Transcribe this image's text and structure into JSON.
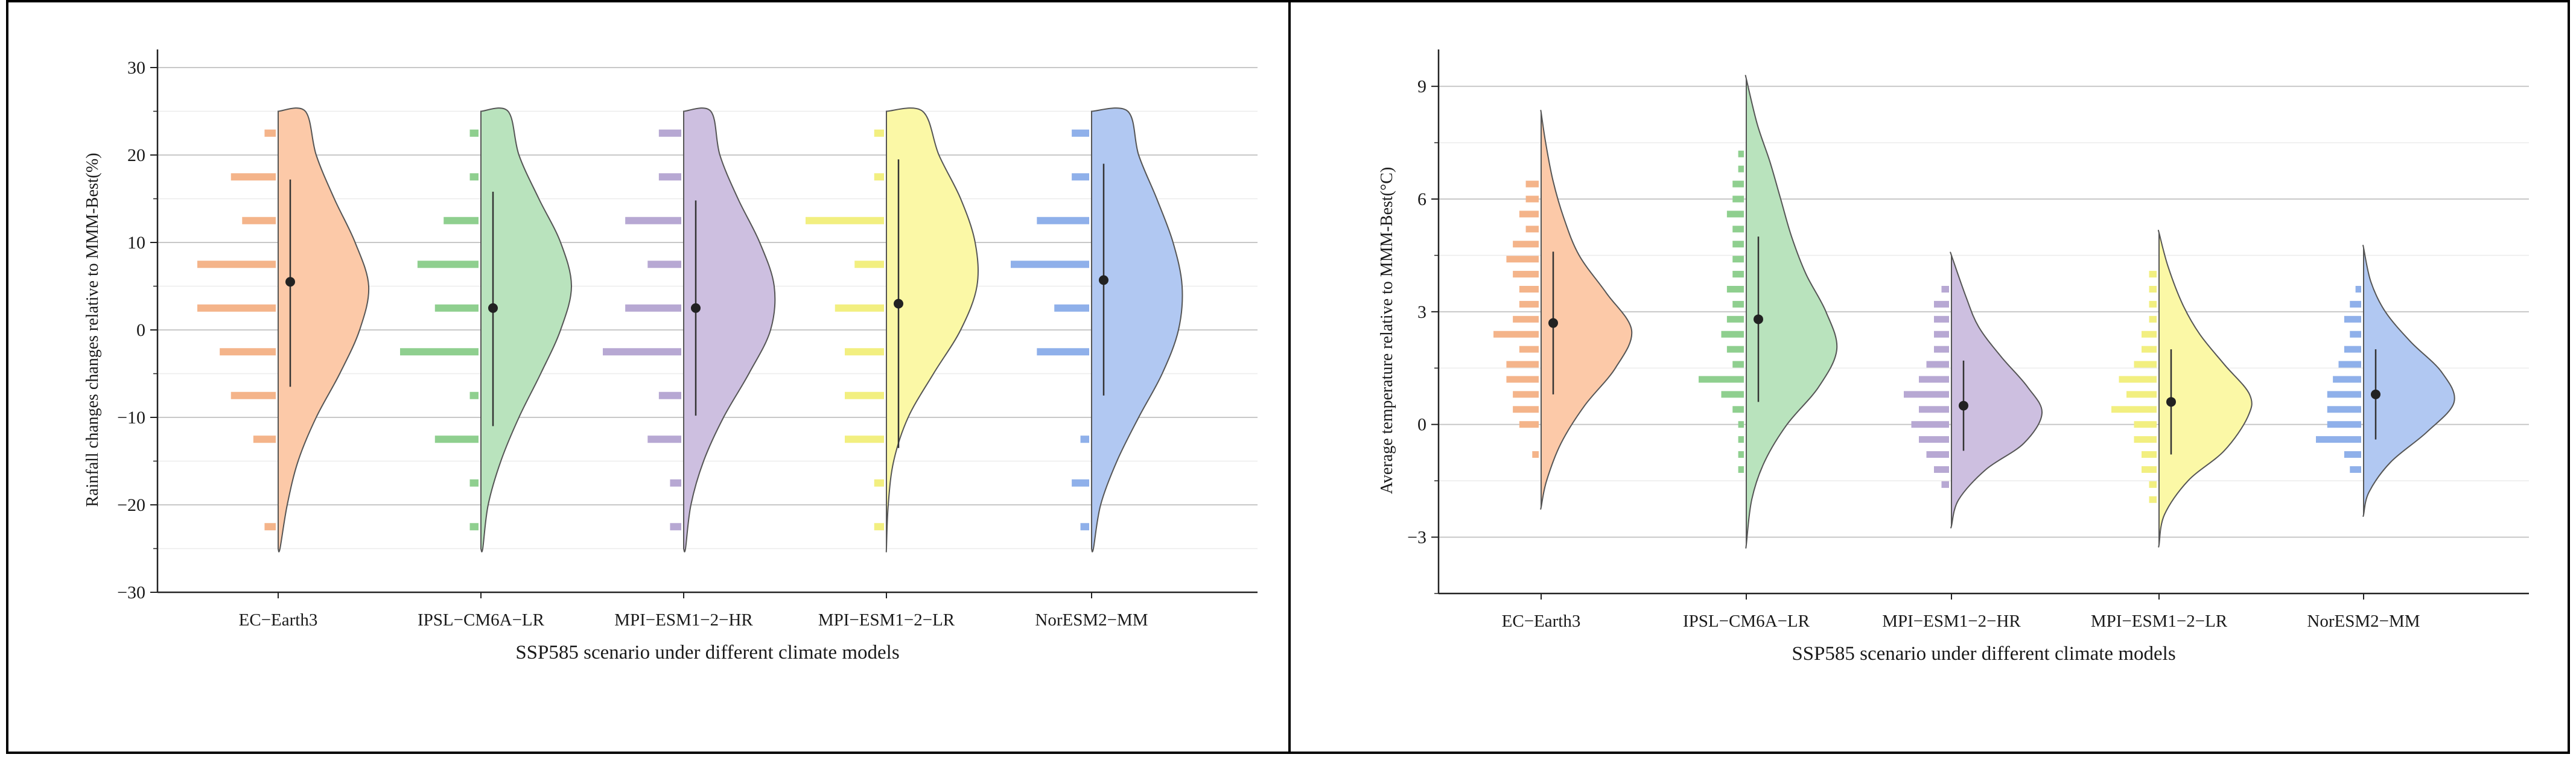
{
  "chart_data": [
    {
      "type": "violin",
      "title": "",
      "xlabel": "SSP585 scenario under different climate models",
      "ylabel": "Rainfall changes changes relative to MMM-Best(%)",
      "ylim": [
        -30,
        30
      ],
      "yticks": [
        -30,
        -20,
        -10,
        0,
        10,
        20,
        30
      ],
      "ytick_labels": [
        "−30",
        "−20",
        "−10",
        "0",
        "10",
        "20",
        "30"
      ],
      "categories": [
        "EC−Earth3",
        "IPSL−CM6A−LR",
        "MPI−ESM1−2−HR",
        "MPI−ESM1−2−LR",
        "NorESM2−MM"
      ],
      "colors": [
        "#fcc9a8",
        "#b9e3bd",
        "#cdbfe0",
        "#fbf8a6",
        "#b1c8f2"
      ],
      "bar_colors": [
        "#f4b48a",
        "#8fcf8f",
        "#b7a8d3",
        "#f2ef80",
        "#8fb0ea"
      ],
      "mean": [
        5.5,
        2.5,
        2.5,
        3.0,
        5.7
      ],
      "ci_low": [
        -6.5,
        -11.0,
        -9.8,
        -13.5,
        -7.5
      ],
      "ci_high": [
        17.2,
        15.8,
        14.8,
        19.5,
        19.0
      ],
      "violin_range": [
        [
          -25,
          25
        ],
        [
          -25,
          25
        ],
        [
          -25,
          25
        ],
        [
          -25,
          25
        ],
        [
          -25,
          25
        ]
      ],
      "density": [
        [
          [
            -25,
            0.02
          ],
          [
            -20,
            0.1
          ],
          [
            -15,
            0.22
          ],
          [
            -10,
            0.42
          ],
          [
            -5,
            0.68
          ],
          [
            0,
            0.9
          ],
          [
            5,
            1.0
          ],
          [
            10,
            0.85
          ],
          [
            15,
            0.62
          ],
          [
            20,
            0.42
          ],
          [
            25,
            0.3
          ]
        ],
        [
          [
            -25,
            0.02
          ],
          [
            -20,
            0.08
          ],
          [
            -15,
            0.22
          ],
          [
            -10,
            0.42
          ],
          [
            -5,
            0.66
          ],
          [
            0,
            0.88
          ],
          [
            5,
            1.0
          ],
          [
            10,
            0.88
          ],
          [
            15,
            0.64
          ],
          [
            20,
            0.42
          ],
          [
            25,
            0.3
          ]
        ],
        [
          [
            -25,
            0.02
          ],
          [
            -20,
            0.08
          ],
          [
            -15,
            0.22
          ],
          [
            -10,
            0.44
          ],
          [
            -5,
            0.72
          ],
          [
            0,
            0.96
          ],
          [
            5,
            1.0
          ],
          [
            10,
            0.84
          ],
          [
            15,
            0.6
          ],
          [
            20,
            0.4
          ],
          [
            25,
            0.3
          ]
        ],
        [
          [
            -25,
            0.0
          ],
          [
            -20,
            0.02
          ],
          [
            -15,
            0.08
          ],
          [
            -10,
            0.24
          ],
          [
            -5,
            0.52
          ],
          [
            0,
            0.82
          ],
          [
            5,
            1.0
          ],
          [
            10,
            0.98
          ],
          [
            15,
            0.82
          ],
          [
            20,
            0.58
          ],
          [
            25,
            0.4
          ]
        ],
        [
          [
            -25,
            0.02
          ],
          [
            -20,
            0.1
          ],
          [
            -15,
            0.28
          ],
          [
            -10,
            0.52
          ],
          [
            -5,
            0.78
          ],
          [
            0,
            0.96
          ],
          [
            5,
            1.0
          ],
          [
            10,
            0.9
          ],
          [
            15,
            0.72
          ],
          [
            20,
            0.52
          ],
          [
            25,
            0.4
          ]
        ]
      ],
      "histogram": [
        [
          [
            -22.5,
            1
          ],
          [
            -12.5,
            2
          ],
          [
            -7.5,
            4
          ],
          [
            -2.5,
            5
          ],
          [
            2.5,
            7
          ],
          [
            7.5,
            7
          ],
          [
            12.5,
            3
          ],
          [
            17.5,
            4
          ],
          [
            22.5,
            1
          ]
        ],
        [
          [
            -22.5,
            1
          ],
          [
            -17.5,
            1
          ],
          [
            -12.5,
            5
          ],
          [
            -7.5,
            1
          ],
          [
            -2.5,
            9
          ],
          [
            2.5,
            5
          ],
          [
            7.5,
            7
          ],
          [
            12.5,
            4
          ],
          [
            17.5,
            1
          ],
          [
            22.5,
            1
          ]
        ],
        [
          [
            -22.5,
            1
          ],
          [
            -17.5,
            1
          ],
          [
            -12.5,
            3
          ],
          [
            -7.5,
            2
          ],
          [
            -2.5,
            7
          ],
          [
            2.5,
            5
          ],
          [
            7.5,
            3
          ],
          [
            12.5,
            5
          ],
          [
            17.5,
            2
          ],
          [
            22.5,
            2
          ]
        ],
        [
          [
            -22.5,
            1
          ],
          [
            -17.5,
            1
          ],
          [
            -12.5,
            4
          ],
          [
            -7.5,
            4
          ],
          [
            -2.5,
            4
          ],
          [
            2.5,
            5
          ],
          [
            7.5,
            3
          ],
          [
            12.5,
            8
          ],
          [
            17.5,
            1
          ],
          [
            22.5,
            1
          ]
        ],
        [
          [
            -22.5,
            1
          ],
          [
            -17.5,
            2
          ],
          [
            -12.5,
            1
          ],
          [
            -2.5,
            6
          ],
          [
            2.5,
            4
          ],
          [
            7.5,
            9
          ],
          [
            12.5,
            6
          ],
          [
            17.5,
            2
          ],
          [
            22.5,
            2
          ]
        ]
      ]
    },
    {
      "type": "violin",
      "title": "",
      "xlabel": "SSP585 scenario under different climate models",
      "ylabel": "Average temperature relative to MMM-Best(°C)",
      "ylim": [
        -4.5,
        9.5
      ],
      "yticks": [
        -3,
        0,
        3,
        6,
        9
      ],
      "ytick_labels": [
        "−3",
        "0",
        "3",
        "6",
        "9"
      ],
      "categories": [
        "EC−Earth3",
        "IPSL−CM6A−LR",
        "MPI−ESM1−2−HR",
        "MPI−ESM1−2−LR",
        "NorESM2−MM"
      ],
      "colors": [
        "#fcc9a8",
        "#b9e3bd",
        "#cdbfe0",
        "#fbf8a6",
        "#b1c8f2"
      ],
      "bar_colors": [
        "#f4b48a",
        "#8fcf8f",
        "#b7a8d3",
        "#f2ef80",
        "#8fb0ea"
      ],
      "mean": [
        2.7,
        2.8,
        0.5,
        0.6,
        0.8
      ],
      "ci_low": [
        0.8,
        0.6,
        -0.7,
        -0.8,
        -0.4
      ],
      "ci_high": [
        4.6,
        5.0,
        1.7,
        2.0,
        2.0
      ],
      "violin_range": [
        [
          -2.2,
          8.3
        ],
        [
          -3.2,
          9.2
        ],
        [
          -2.7,
          4.5
        ],
        [
          -3.2,
          5.1
        ],
        [
          -2.4,
          4.7
        ]
      ],
      "density": [
        [
          [
            -2.2,
            0.0
          ],
          [
            -1.5,
            0.06
          ],
          [
            -0.5,
            0.22
          ],
          [
            0.5,
            0.48
          ],
          [
            1.5,
            0.82
          ],
          [
            2.5,
            1.0
          ],
          [
            3.5,
            0.72
          ],
          [
            4.5,
            0.42
          ],
          [
            5.5,
            0.25
          ],
          [
            6.5,
            0.13
          ],
          [
            7.5,
            0.05
          ],
          [
            8.3,
            0.0
          ]
        ],
        [
          [
            -3.2,
            0.0
          ],
          [
            -2.0,
            0.06
          ],
          [
            -1.0,
            0.2
          ],
          [
            0.0,
            0.45
          ],
          [
            1.0,
            0.8
          ],
          [
            2.0,
            1.0
          ],
          [
            3.0,
            0.88
          ],
          [
            4.0,
            0.66
          ],
          [
            5.0,
            0.5
          ],
          [
            6.0,
            0.38
          ],
          [
            7.0,
            0.26
          ],
          [
            8.0,
            0.12
          ],
          [
            9.2,
            0.0
          ]
        ],
        [
          [
            -2.7,
            0.0
          ],
          [
            -2.0,
            0.08
          ],
          [
            -1.2,
            0.38
          ],
          [
            -0.5,
            0.8
          ],
          [
            0.3,
            1.0
          ],
          [
            1.0,
            0.84
          ],
          [
            1.8,
            0.55
          ],
          [
            2.6,
            0.3
          ],
          [
            3.4,
            0.16
          ],
          [
            4.5,
            0.0
          ]
        ],
        [
          [
            -3.2,
            0.0
          ],
          [
            -2.4,
            0.06
          ],
          [
            -1.5,
            0.32
          ],
          [
            -0.7,
            0.72
          ],
          [
            0.2,
            0.98
          ],
          [
            0.8,
            1.0
          ],
          [
            1.6,
            0.72
          ],
          [
            2.4,
            0.45
          ],
          [
            3.2,
            0.26
          ],
          [
            4.2,
            0.1
          ],
          [
            5.1,
            0.0
          ]
        ],
        [
          [
            -2.4,
            0.0
          ],
          [
            -1.8,
            0.06
          ],
          [
            -1.0,
            0.3
          ],
          [
            -0.2,
            0.7
          ],
          [
            0.6,
            1.0
          ],
          [
            1.4,
            0.86
          ],
          [
            2.2,
            0.52
          ],
          [
            3.0,
            0.24
          ],
          [
            3.8,
            0.08
          ],
          [
            4.7,
            0.0
          ]
        ]
      ],
      "histogram": [
        [
          [
            -0.8,
            1
          ],
          [
            0.0,
            3
          ],
          [
            0.4,
            4
          ],
          [
            0.8,
            4
          ],
          [
            1.2,
            5
          ],
          [
            1.6,
            5
          ],
          [
            2.0,
            3
          ],
          [
            2.4,
            7
          ],
          [
            2.8,
            4
          ],
          [
            3.2,
            3
          ],
          [
            3.6,
            3
          ],
          [
            4.0,
            4
          ],
          [
            4.4,
            5
          ],
          [
            4.8,
            4
          ],
          [
            5.2,
            2
          ],
          [
            5.6,
            3
          ],
          [
            6.0,
            2
          ],
          [
            6.4,
            2
          ]
        ],
        [
          [
            -1.2,
            1
          ],
          [
            -0.8,
            1
          ],
          [
            -0.4,
            1
          ],
          [
            0.0,
            1
          ],
          [
            0.4,
            2
          ],
          [
            0.8,
            4
          ],
          [
            1.2,
            8
          ],
          [
            1.6,
            2
          ],
          [
            2.0,
            3
          ],
          [
            2.4,
            4
          ],
          [
            2.8,
            3
          ],
          [
            3.2,
            2
          ],
          [
            3.6,
            3
          ],
          [
            4.0,
            2
          ],
          [
            4.4,
            2
          ],
          [
            4.8,
            2
          ],
          [
            5.2,
            2
          ],
          [
            5.6,
            3
          ],
          [
            6.0,
            2
          ],
          [
            6.4,
            2
          ],
          [
            6.8,
            1
          ],
          [
            7.2,
            1
          ]
        ],
        [
          [
            -1.6,
            1
          ],
          [
            -1.2,
            2
          ],
          [
            -0.8,
            3
          ],
          [
            -0.4,
            4
          ],
          [
            0.0,
            5
          ],
          [
            0.4,
            4
          ],
          [
            0.8,
            6
          ],
          [
            1.2,
            4
          ],
          [
            1.6,
            3
          ],
          [
            2.0,
            2
          ],
          [
            2.4,
            2
          ],
          [
            2.8,
            2
          ],
          [
            3.2,
            2
          ],
          [
            3.6,
            1
          ]
        ],
        [
          [
            -2.0,
            1
          ],
          [
            -1.6,
            1
          ],
          [
            -1.2,
            2
          ],
          [
            -0.8,
            2
          ],
          [
            -0.4,
            3
          ],
          [
            0.0,
            3
          ],
          [
            0.4,
            6
          ],
          [
            0.8,
            4
          ],
          [
            1.2,
            5
          ],
          [
            1.6,
            3
          ],
          [
            2.0,
            2
          ],
          [
            2.4,
            2
          ],
          [
            2.8,
            1
          ],
          [
            3.2,
            1
          ],
          [
            3.6,
            1
          ],
          [
            4.0,
            1
          ]
        ],
        [
          [
            -1.2,
            2
          ],
          [
            -0.8,
            3
          ],
          [
            -0.4,
            8
          ],
          [
            0.0,
            6
          ],
          [
            0.4,
            6
          ],
          [
            0.8,
            6
          ],
          [
            1.2,
            5
          ],
          [
            1.6,
            4
          ],
          [
            2.0,
            3
          ],
          [
            2.4,
            2
          ],
          [
            2.8,
            3
          ],
          [
            3.2,
            2
          ],
          [
            3.6,
            1
          ]
        ]
      ]
    }
  ]
}
